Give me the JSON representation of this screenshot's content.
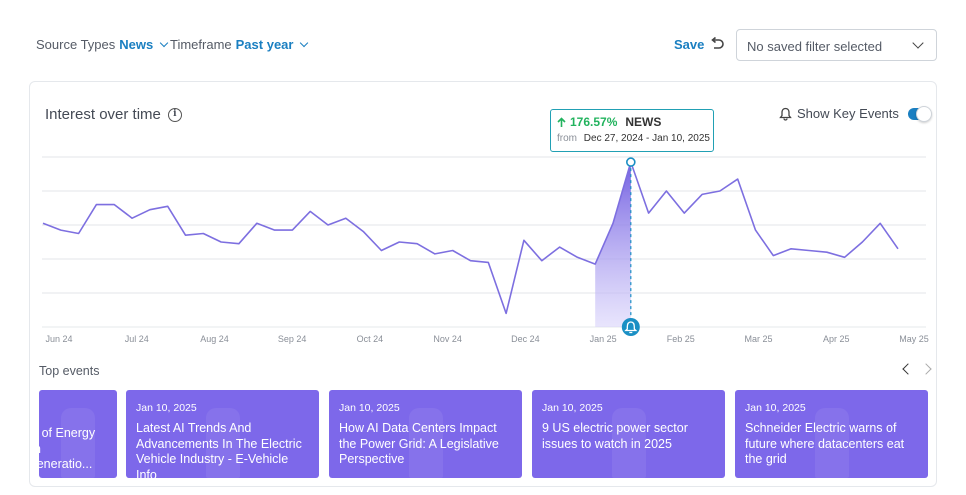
{
  "filters": {
    "source_types_label": "Source Types",
    "source_types_value": "News",
    "timeframe_label": "Timeframe",
    "timeframe_value": "Past year",
    "save_label": "Save",
    "saved_filter_placeholder": "No saved filter selected"
  },
  "panel": {
    "title": "Interest over time",
    "show_key_events_label": "Show Key Events",
    "show_key_events_on": true
  },
  "tooltip": {
    "change": "176.57%",
    "source": "NEWS",
    "from_label": "from",
    "range": "Dec 27, 2024 - Jan 10, 2025"
  },
  "colors": {
    "line": "#7d6fe0",
    "accent": "#1a7fc1",
    "marker": "#1a8fc4",
    "event_card": "#7d68ea",
    "positive": "#22b35e"
  },
  "chart_data": {
    "type": "line",
    "x_tick_labels": [
      "Jun 24",
      "Jul 24",
      "Aug 24",
      "Sep 24",
      "Oct 24",
      "Nov 24",
      "Dec 24",
      "Jan 25",
      "Feb 25",
      "Mar 25",
      "Apr 25",
      "May 25"
    ],
    "ylim": [
      0,
      100
    ],
    "grid": true,
    "highlight_index": 33,
    "series": [
      {
        "values": [
          61,
          57,
          55,
          72,
          72,
          64,
          69,
          71,
          54,
          55,
          50,
          49,
          61,
          57,
          57,
          68,
          60,
          64,
          56,
          45,
          50,
          49,
          43,
          45,
          39,
          38,
          8,
          51,
          39,
          47,
          41,
          37,
          61,
          97,
          67,
          80,
          67,
          78,
          80,
          87,
          57,
          42,
          46,
          45,
          44,
          41,
          50,
          61,
          46
        ]
      }
    ]
  },
  "top_events": {
    "title": "Top events",
    "items": [
      {
        "date": "",
        "title": "re of Energy\nen\nGeneratio..."
      },
      {
        "date": "Jan 10, 2025",
        "title": "Latest AI Trends And Advancements In The Electric Vehicle Industry - E-Vehicle Info"
      },
      {
        "date": "Jan 10, 2025",
        "title": "How AI Data Centers Impact the Power Grid: A Legislative Perspective"
      },
      {
        "date": "Jan 10, 2025",
        "title": "9 US electric power sector issues to watch in 2025"
      },
      {
        "date": "Jan 10, 2025",
        "title": "Schneider Electric warns of future where datacenters eat the grid"
      }
    ]
  },
  "icons": [
    "chevron-down-icon",
    "undo-icon",
    "info-icon",
    "bell-icon",
    "arrow-up-icon",
    "chevron-left-icon",
    "chevron-right-icon"
  ]
}
